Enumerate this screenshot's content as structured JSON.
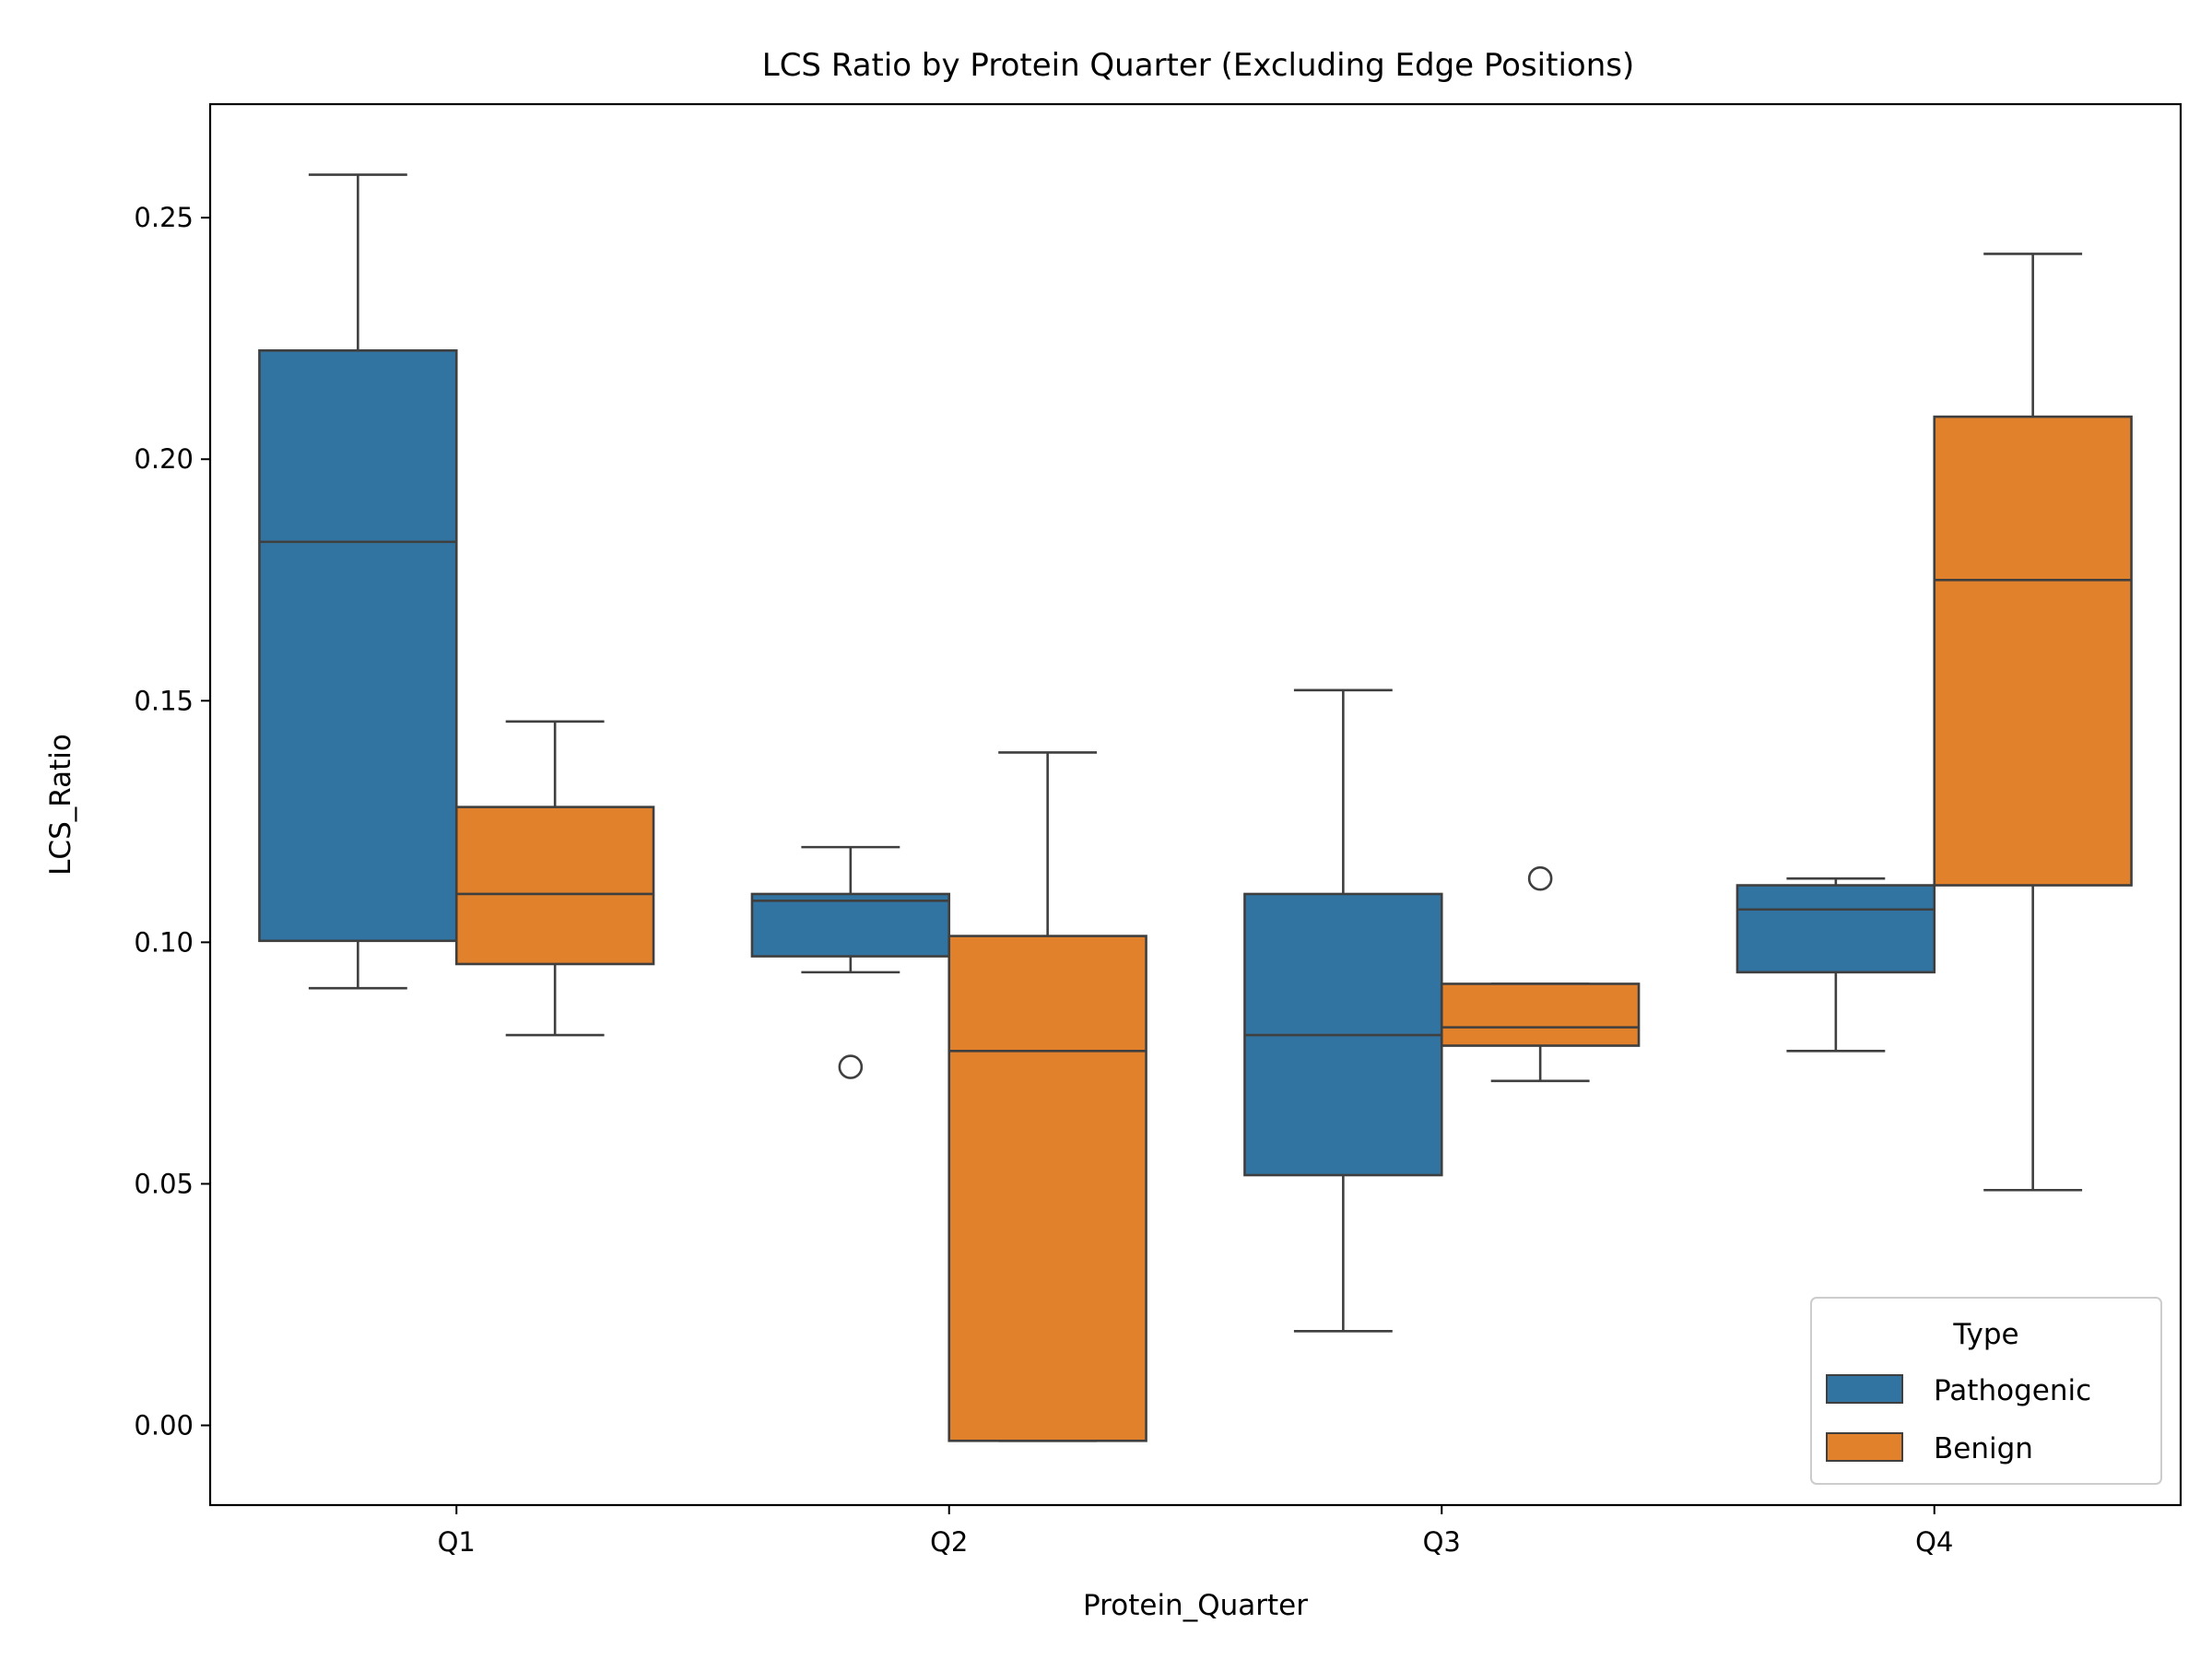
{
  "chart_data": {
    "type": "box",
    "title": "LCS Ratio by Protein Quarter (Excluding Edge Positions)",
    "xlabel": "Protein_Quarter",
    "ylabel": "LCS_Ratio",
    "categories": [
      "Q1",
      "Q2",
      "Q3",
      "Q4"
    ],
    "ylim": [
      -0.0165,
      0.2735
    ],
    "yticks": [
      0.0,
      0.05,
      0.1,
      0.15,
      0.2,
      0.25
    ],
    "ytick_labels": [
      "0.00",
      "0.05",
      "0.10",
      "0.15",
      "0.20",
      "0.25"
    ],
    "grid": false,
    "legend": {
      "title": "Type",
      "placement": "lower-right"
    },
    "series": [
      {
        "name": "Pathogenic",
        "color": "#3274a1",
        "boxes": [
          {
            "whisker_low": 0.0905,
            "q1": 0.1003,
            "median": 0.1829,
            "q3": 0.2225,
            "whisker_high": 0.2589,
            "outliers": []
          },
          {
            "whisker_low": 0.0938,
            "q1": 0.0971,
            "median": 0.1086,
            "q3": 0.11,
            "whisker_high": 0.1197,
            "outliers": [
              0.0742
            ]
          },
          {
            "whisker_low": 0.0195,
            "q1": 0.0518,
            "median": 0.0808,
            "q3": 0.11,
            "whisker_high": 0.1522,
            "outliers": []
          },
          {
            "whisker_low": 0.0775,
            "q1": 0.0938,
            "median": 0.1068,
            "q3": 0.1118,
            "whisker_high": 0.1132,
            "outliers": []
          }
        ]
      },
      {
        "name": "Benign",
        "color": "#e1812c",
        "boxes": [
          {
            "whisker_low": 0.0808,
            "q1": 0.0955,
            "median": 0.11,
            "q3": 0.128,
            "whisker_high": 0.1457,
            "outliers": []
          },
          {
            "whisker_low": -0.0032,
            "q1": -0.0032,
            "median": 0.0775,
            "q3": 0.1013,
            "whisker_high": 0.1393,
            "outliers": []
          },
          {
            "whisker_low": 0.0713,
            "q1": 0.0786,
            "median": 0.0824,
            "q3": 0.0914,
            "whisker_high": 0.0914,
            "outliers": [
              0.1132
            ]
          },
          {
            "whisker_low": 0.0487,
            "q1": 0.1118,
            "median": 0.175,
            "q3": 0.2088,
            "whisker_high": 0.2425,
            "outliers": []
          }
        ]
      }
    ]
  }
}
